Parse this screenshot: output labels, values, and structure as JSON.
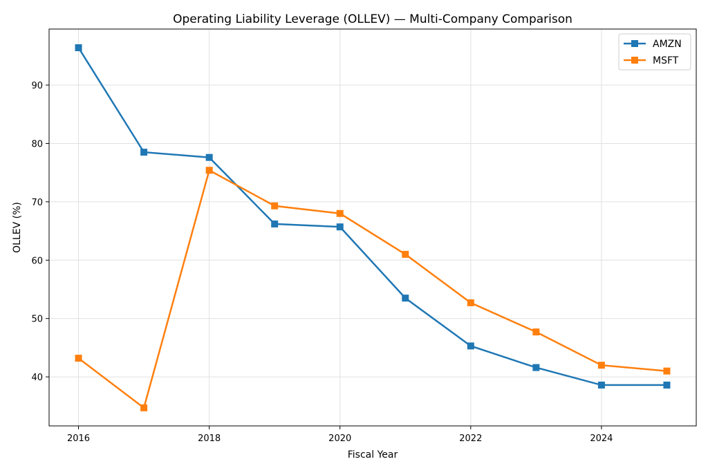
{
  "chart_data": {
    "type": "line",
    "title": "Operating Liability Leverage (OLLEV) — Multi-Company Comparison",
    "xlabel": "Fiscal Year",
    "ylabel": "OLLEV (%)",
    "x": [
      2016,
      2017,
      2018,
      2019,
      2020,
      2021,
      2022,
      2023,
      2024,
      2025
    ],
    "xticks": [
      "2016",
      "2018",
      "2020",
      "2022",
      "2024"
    ],
    "yticks": [
      "40",
      "50",
      "60",
      "70",
      "80",
      "90"
    ],
    "xlim": [
      2015.55,
      2025.45
    ],
    "ylim": [
      31.6,
      99.6
    ],
    "grid": true,
    "legend_position": "top-right",
    "series": [
      {
        "name": "AMZN",
        "color": "#1f77b4",
        "marker": "square",
        "values": [
          96.4,
          78.5,
          77.6,
          66.2,
          65.7,
          53.5,
          45.3,
          41.6,
          38.6,
          38.6
        ]
      },
      {
        "name": "MSFT",
        "color": "#ff7f0e",
        "marker": "square",
        "values": [
          43.2,
          34.7,
          75.4,
          69.3,
          68.0,
          61.0,
          52.7,
          47.7,
          42.0,
          41.0
        ]
      }
    ]
  }
}
